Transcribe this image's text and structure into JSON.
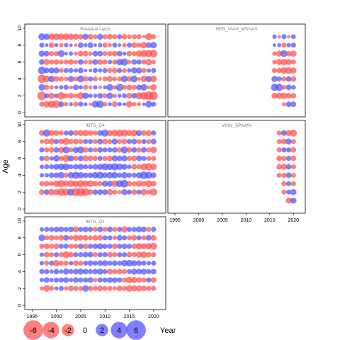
{
  "chart_data": {
    "type": "scatter",
    "subtype": "bubble-residuals",
    "ylabel": "Age",
    "xlabel": "Year",
    "x_ticks": [
      1995,
      2000,
      2005,
      2010,
      2015,
      2020
    ],
    "y_ticks": [
      0,
      2,
      4,
      6,
      8,
      10
    ],
    "xlim": [
      1993.5,
      2022.5
    ],
    "ylim": [
      -0.5,
      10.5
    ],
    "colors": {
      "negative": "#ff4d4d",
      "positive": "#4d4dff"
    },
    "legend": {
      "values": [
        -6,
        -4,
        -2,
        0,
        2,
        4,
        6
      ],
      "labels": [
        "-6",
        "-4",
        "-2",
        "0",
        "2",
        "4",
        "6"
      ]
    },
    "panels": [
      {
        "title": "Residual catch",
        "years": [
          1997,
          1998,
          1999,
          2000,
          2001,
          2002,
          2003,
          2004,
          2005,
          2006,
          2007,
          2008,
          2009,
          2010,
          2011,
          2012,
          2013,
          2014,
          2015,
          2016,
          2017,
          2018,
          2019,
          2020
        ],
        "ages": [
          1,
          2,
          3,
          4,
          5,
          6,
          7,
          8,
          9
        ],
        "residuals": [
          [
            -0.6,
            -1.2,
            -1.6,
            -1.8,
            0.8,
            -0.4,
            0.3,
            -0.6,
            0.6,
            0.3,
            -0.2,
            1.4,
            1.7,
            -0.5,
            0.3,
            -0.8,
            0.4,
            0.2,
            -1.2,
            -0.4,
            -0.3,
            0.2,
            1.3,
            0.6
          ],
          [
            -2.5,
            0.6,
            -1.2,
            0.4,
            -1.8,
            -0.6,
            -1.0,
            -0.4,
            -1.6,
            1.1,
            0.4,
            0.3,
            0.8,
            -0.6,
            1.2,
            -0.4,
            0.3,
            0.6,
            -0.9,
            0.8,
            -1.5,
            -1.8,
            -2.6,
            -2.3
          ],
          [
            1.2,
            -0.6,
            -0.4,
            0.3,
            0.4,
            0.6,
            -0.3,
            0.8,
            0.4,
            -0.6,
            -0.3,
            0.4,
            -0.2,
            0.3,
            1.3,
            -0.4,
            1.6,
            -0.5,
            -0.8,
            -0.6,
            0.8,
            1.2,
            -0.3,
            -1.1
          ],
          [
            -2.2,
            -1.3,
            1.2,
            -0.8,
            -0.6,
            -0.4,
            1.0,
            -0.5,
            1.4,
            -0.8,
            0.6,
            -0.6,
            -0.2,
            -0.6,
            -0.9,
            -0.4,
            -0.6,
            1.3,
            -0.8,
            1.4,
            -0.2,
            -1.2,
            1.1,
            -1.3
          ],
          [
            1.8,
            0.8,
            1.0,
            1.0,
            -0.5,
            0.6,
            0.6,
            0.4,
            0.8,
            0.2,
            0.2,
            0.6,
            0.4,
            0.6,
            -0.6,
            -0.8,
            0.6,
            -0.5,
            0.4,
            1.0,
            1.0,
            -0.6,
            0.4,
            0.6
          ],
          [
            0.8,
            -1.0,
            -0.6,
            -0.8,
            -0.5,
            -0.6,
            -0.8,
            -0.4,
            0.8,
            -0.4,
            -0.5,
            0.9,
            -0.8,
            -0.6,
            0.4,
            -0.6,
            1.2,
            1.6,
            -0.4,
            0.8,
            0.6,
            -0.6,
            -1.2,
            -0.4
          ],
          [
            1.0,
            0.8,
            -0.6,
            -0.6,
            1.4,
            0.2,
            0.4,
            -0.3,
            -0.8,
            -0.8,
            -0.4,
            0.8,
            0.8,
            -0.6,
            -0.6,
            -0.8,
            0.8,
            0.3,
            -0.8,
            -0.6,
            -1.2,
            -1.5,
            -1.6,
            -1.8
          ],
          [
            0.6,
            0.2,
            -0.8,
            0.3,
            -0.4,
            0.4,
            0.2,
            -0.2,
            0.8,
            0.3,
            0.8,
            0.2,
            0.4,
            -0.6,
            -0.3,
            0.6,
            0.2,
            -0.4,
            0.6,
            -0.8,
            -0.6,
            -1.2,
            0.8,
            1.2
          ],
          [
            1.4,
            1.1,
            -1.2,
            -1.3,
            -1.2,
            -1.3,
            -1.2,
            -1.0,
            -0.8,
            1.0,
            -0.8,
            -0.5,
            1.0,
            -0.6,
            -0.8,
            -0.6,
            0.6,
            -0.8,
            -0.5,
            -0.6,
            -0.6,
            -0.2,
            -1.5,
            -0.6
          ]
        ]
      },
      {
        "title": "HER_VIAN_MSHAS",
        "years": [
          2016,
          2017,
          2018,
          2019,
          2020
        ],
        "ages": [
          1,
          2,
          3,
          4,
          5,
          6,
          7,
          8,
          9
        ],
        "residuals": [
          [
            null,
            null,
            -0.3,
            0.8,
            0.8
          ],
          [
            -1.0,
            -1.2,
            -1.3,
            -0.8,
            -0.8
          ],
          [
            1.5,
            1.6,
            -0.5,
            0.8,
            0.5
          ],
          [
            1.0,
            0.6,
            -0.6,
            0.8,
            -0.8
          ],
          [
            -0.6,
            -0.8,
            -1.3,
            -1.4,
            -1.0
          ],
          [
            -0.4,
            -1.0,
            -1.2,
            -1.0,
            -0.6
          ],
          [
            -0.4,
            -1.0,
            1.4,
            -0.8,
            -1.1
          ],
          [
            0.2,
            0.3,
            -0.6,
            0.4,
            0.6
          ],
          [
            0.4,
            -0.2,
            0.6,
            -0.2,
            0.5
          ]
        ]
      },
      {
        "title": "IBTS_Q4",
        "years": [
          1997,
          1998,
          1999,
          2000,
          2001,
          2002,
          2003,
          2004,
          2005,
          2006,
          2007,
          2008,
          2009,
          2010,
          2011,
          2012,
          2013,
          2014,
          2015,
          2016,
          2017,
          2018,
          2019,
          2020
        ],
        "ages": [
          1,
          2,
          3,
          4,
          5,
          6,
          7,
          8,
          9
        ],
        "residuals": [
          [
            null,
            null,
            null,
            null,
            null,
            null,
            null,
            null,
            null,
            null,
            null,
            null,
            null,
            null,
            null,
            null,
            null,
            null,
            null,
            null,
            null,
            null,
            null,
            null
          ],
          [
            -0.8,
            0.8,
            -1.2,
            -1.0,
            -1.8,
            -1.4,
            1.5,
            -2.0,
            -2.2,
            -1.8,
            -0.8,
            0.8,
            0.8,
            0.8,
            -1.0,
            -0.6,
            -0.4,
            1.0,
            0.6,
            -0.8,
            0.6,
            -1.2,
            -0.6,
            -1.6
          ],
          [
            -0.6,
            -0.8,
            -0.6,
            -1.2,
            -1.6,
            -1.0,
            -1.4,
            -1.2,
            -1.5,
            -1.2,
            -1.3,
            -0.8,
            -0.6,
            1.0,
            1.0,
            -1.3,
            1.4,
            1.8,
            -0.8,
            -0.6,
            -1.2,
            -0.8,
            -1.4,
            -0.8
          ],
          [
            0.4,
            0.4,
            0.8,
            0.8,
            1.2,
            -0.6,
            1.1,
            1.6,
            1.2,
            0.8,
            0.8,
            1.2,
            1.6,
            0.8,
            1.2,
            1.2,
            0.6,
            1.2,
            0.6,
            0.6,
            1.0,
            1.8,
            1.5,
            0.8
          ],
          [
            0.4,
            0.6,
            0.6,
            1.0,
            1.2,
            1.4,
            0.6,
            0.8,
            1.0,
            0.6,
            0.6,
            0.8,
            1.0,
            1.4,
            1.2,
            1.6,
            1.2,
            1.0,
            0.4,
            -0.8,
            -0.6,
            -1.4,
            -1.6,
            -1.2
          ],
          [
            0.6,
            -0.8,
            0.4,
            1.2,
            -0.6,
            -1.6,
            1.0,
            -0.6,
            0.8,
            -1.0,
            -0.8,
            -0.6,
            0.6,
            -0.6,
            -0.8,
            1.0,
            0.8,
            1.0,
            -0.6,
            -0.8,
            0.8,
            0.6,
            -0.6,
            -0.6
          ],
          [
            0.6,
            -0.6,
            -0.8,
            0.8,
            -1.1,
            1.4,
            -0.6,
            1.0,
            1.4,
            -0.8,
            0.6,
            -0.6,
            0.8,
            0.6,
            0.6,
            0.8,
            -0.8,
            1.4,
            -0.8,
            0.8,
            -0.6,
            0.8,
            -0.6,
            -1.2
          ],
          [
            -0.4,
            -0.8,
            -1.1,
            0.6,
            -0.8,
            -1.4,
            -0.6,
            -0.8,
            -0.6,
            0.6,
            0.6,
            -0.6,
            0.8,
            -0.8,
            -0.6,
            1.0,
            -0.6,
            -0.8,
            0.6,
            0.8,
            -0.6,
            0.6,
            -0.6,
            0.8
          ],
          [
            -0.8,
            1.6,
            -0.9,
            -0.8,
            -0.6,
            0.6,
            0.8,
            -0.8,
            -1.0,
            -1.1,
            -0.8,
            -0.6,
            0.8,
            1.6,
            -1.0,
            -1.3,
            -1.6,
            -1.5,
            -1.0,
            -1.2,
            1.0,
            -0.8,
            -1.0,
            0.6
          ]
        ]
      },
      {
        "title": "VIAN_SPAWN",
        "years": [
          2016,
          2017,
          2018,
          2019,
          2020
        ],
        "ages": [
          1,
          2,
          3,
          4,
          5,
          6,
          7,
          8,
          9
        ],
        "residuals": [
          [
            null,
            null,
            null,
            -1.0,
            1.0
          ],
          [
            null,
            null,
            -0.6,
            0.6,
            1.0
          ],
          [
            null,
            null,
            -0.6,
            0.6,
            -0.6
          ],
          [
            null,
            -0.6,
            -0.6,
            0.8,
            -0.6
          ],
          [
            null,
            -0.8,
            -1.0,
            0.8,
            -0.6
          ],
          [
            null,
            -0.8,
            -0.6,
            0.6,
            -0.8
          ],
          [
            null,
            -0.6,
            0.6,
            0.6,
            -0.8
          ],
          [
            null,
            -0.6,
            -0.8,
            1.0,
            -0.6
          ],
          [
            null,
            -0.6,
            0.8,
            -1.0,
            -1.4
          ]
        ]
      },
      {
        "title": "IBTS_Q1",
        "years": [
          1997,
          1998,
          1999,
          2000,
          2001,
          2002,
          2003,
          2004,
          2005,
          2006,
          2007,
          2008,
          2009,
          2010,
          2011,
          2012,
          2013,
          2014,
          2015,
          2016,
          2017,
          2018,
          2019,
          2020
        ],
        "ages": [
          1,
          2,
          3,
          4,
          5,
          6,
          7,
          8,
          9
        ],
        "residuals": [
          [
            null,
            null,
            null,
            null,
            null,
            null,
            null,
            null,
            null,
            null,
            null,
            null,
            null,
            null,
            null,
            null,
            null,
            null,
            null,
            null,
            null,
            null,
            null,
            null
          ],
          [
            -0.3,
            -1.2,
            -0.6,
            0.3,
            0.6,
            -0.4,
            -0.8,
            -0.6,
            -0.5,
            1.2,
            -0.6,
            -0.6,
            -0.8,
            -0.6,
            -0.6,
            -0.4,
            -0.8,
            -0.6,
            -1.2,
            -1.0,
            -1.0,
            -0.8,
            -0.6,
            -0.6
          ],
          [
            0.4,
            0.8,
            0.4,
            0.6,
            0.6,
            0.8,
            0.4,
            0.8,
            0.6,
            0.6,
            0.8,
            -0.4,
            0.6,
            0.6,
            0.8,
            0.8,
            0.6,
            -0.6,
            -1.2,
            -1.0,
            -0.8,
            -0.6,
            0.6,
            -0.8
          ],
          [
            0.6,
            0.6,
            0.4,
            0.8,
            0.4,
            1.0,
            0.6,
            0.8,
            1.0,
            0.8,
            0.6,
            0.8,
            1.0,
            0.6,
            -0.8,
            -0.6,
            -0.8,
            -0.6,
            0.6,
            1.0,
            0.8,
            1.0,
            0.6,
            0.8
          ],
          [
            0.4,
            -0.6,
            0.6,
            -1.2,
            -0.6,
            -0.6,
            0.4,
            -0.8,
            -0.6,
            0.6,
            0.8,
            0.6,
            0.8,
            1.0,
            0.6,
            0.8,
            0.6,
            1.2,
            1.2,
            1.0,
            0.8,
            0.6,
            0.4,
            0.6
          ],
          [
            0.4,
            -0.8,
            -0.6,
            0.6,
            -0.6,
            -1.4,
            -0.8,
            0.6,
            0.6,
            0.8,
            0.8,
            -0.6,
            0.6,
            0.6,
            -0.8,
            -0.6,
            0.6,
            0.6,
            -0.8,
            -0.6,
            -1.0,
            -1.2,
            -0.8,
            -0.6
          ],
          [
            -0.6,
            -0.8,
            -0.6,
            -0.8,
            0.6,
            0.6,
            -0.6,
            -0.6,
            0.8,
            -0.8,
            0.6,
            0.8,
            1.0,
            0.6,
            0.6,
            -0.8,
            0.6,
            0.8,
            0.6,
            -0.8,
            -1.2,
            -1.0,
            -1.2,
            -1.4
          ],
          [
            1.2,
            -0.6,
            -0.8,
            -0.6,
            -0.8,
            0.8,
            -0.6,
            -1.0,
            -0.8,
            -0.8,
            -0.6,
            -0.8,
            -0.8,
            0.6,
            0.6,
            -0.4,
            0.8,
            0.6,
            -0.6,
            -0.8,
            0.6,
            -0.6,
            0.8,
            -0.8
          ],
          [
            0.4,
            0.6,
            0.6,
            0.8,
            0.8,
            0.6,
            0.8,
            -1.0,
            0.6,
            0.8,
            0.6,
            -0.6,
            0.8,
            -0.6,
            0.8,
            -0.6,
            0.6,
            -1.2,
            0.6,
            0.6,
            1.0,
            0.8,
            -0.6,
            0.6
          ]
        ]
      }
    ]
  }
}
